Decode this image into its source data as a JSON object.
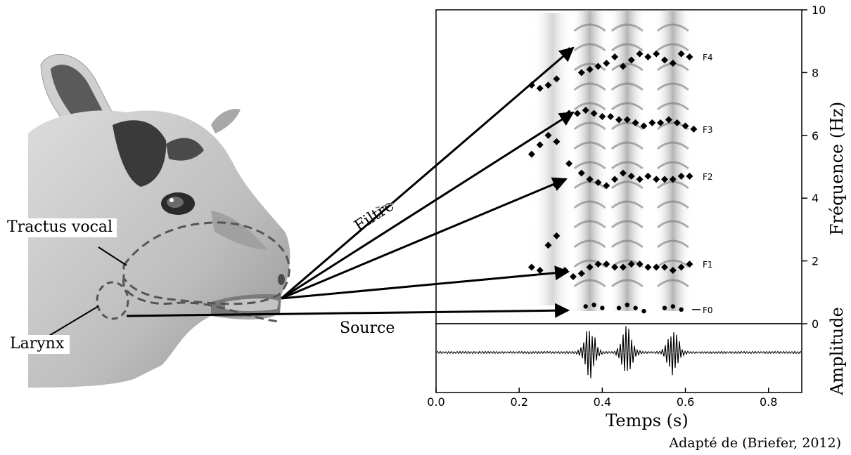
{
  "labels": {
    "tractus": "Tractus vocal",
    "larynx": "Larynx",
    "filter": "Filtre",
    "source": "Source"
  },
  "spectrogram": {
    "formants": [
      "F4",
      "F3",
      "F2",
      "F1",
      "F0"
    ]
  },
  "credit": "Adapté de (Briefer, 2012)",
  "colors": {
    "ink": "#000000",
    "goat_fur": "#c9c9c9",
    "goat_dark": "#3a3a3a"
  },
  "chart_data": {
    "type": "spectrogram",
    "xlabel": "Temps (s)",
    "ylabel_top": "Fréquence (Hz)",
    "ylabel_bottom": "Amplitude",
    "x_ticks": [
      "0.0",
      "0.2",
      "0.4",
      "0.6",
      "0.8"
    ],
    "y_ticks": [
      "0",
      "2",
      "4",
      "6",
      "8",
      "10"
    ],
    "xlim": [
      0.0,
      0.88
    ],
    "ylim": [
      0,
      10
    ],
    "series": [
      {
        "name": "F4",
        "x": [
          0.23,
          0.25,
          0.27,
          0.29,
          0.32,
          0.35,
          0.37,
          0.39,
          0.41,
          0.43,
          0.45,
          0.47,
          0.49,
          0.51,
          0.53,
          0.55,
          0.57,
          0.59,
          0.61
        ],
        "y": [
          7.6,
          7.5,
          7.6,
          7.8,
          8.7,
          8.0,
          8.1,
          8.2,
          8.3,
          8.5,
          8.2,
          8.4,
          8.6,
          8.5,
          8.6,
          8.4,
          8.3,
          8.6,
          8.5
        ]
      },
      {
        "name": "F3",
        "x": [
          0.23,
          0.25,
          0.27,
          0.29,
          0.32,
          0.34,
          0.36,
          0.38,
          0.4,
          0.42,
          0.44,
          0.46,
          0.48,
          0.5,
          0.52,
          0.54,
          0.56,
          0.58,
          0.6,
          0.62
        ],
        "y": [
          5.4,
          5.7,
          6.0,
          5.8,
          6.7,
          6.7,
          6.8,
          6.7,
          6.6,
          6.6,
          6.5,
          6.5,
          6.4,
          6.3,
          6.4,
          6.4,
          6.5,
          6.4,
          6.3,
          6.2
        ]
      },
      {
        "name": "F2",
        "x": [
          0.29,
          0.32,
          0.35,
          0.37,
          0.39,
          0.41,
          0.43,
          0.45,
          0.47,
          0.49,
          0.51,
          0.53,
          0.55,
          0.57,
          0.59,
          0.61
        ],
        "y": [
          4.4,
          5.1,
          4.8,
          4.6,
          4.5,
          4.4,
          4.6,
          4.8,
          4.7,
          4.6,
          4.7,
          4.6,
          4.6,
          4.6,
          4.7,
          4.7
        ]
      },
      {
        "name": "F1",
        "x": [
          0.23,
          0.25,
          0.27,
          0.29,
          0.31,
          0.33,
          0.35,
          0.37,
          0.39,
          0.41,
          0.43,
          0.45,
          0.47,
          0.49,
          0.51,
          0.53,
          0.55,
          0.57,
          0.59,
          0.61
        ],
        "y": [
          1.8,
          1.7,
          2.5,
          2.8,
          1.7,
          1.5,
          1.6,
          1.8,
          1.9,
          1.9,
          1.8,
          1.8,
          1.9,
          1.9,
          1.8,
          1.8,
          1.8,
          1.7,
          1.8,
          1.9
        ]
      },
      {
        "name": "F0",
        "x": [
          0.36,
          0.38,
          0.4,
          0.44,
          0.46,
          0.48,
          0.5,
          0.55,
          0.57,
          0.59
        ],
        "y": [
          0.55,
          0.6,
          0.5,
          0.5,
          0.6,
          0.5,
          0.4,
          0.5,
          0.55,
          0.45
        ]
      }
    ],
    "amplitude_bursts_s": [
      0.37,
      0.46,
      0.57
    ]
  }
}
